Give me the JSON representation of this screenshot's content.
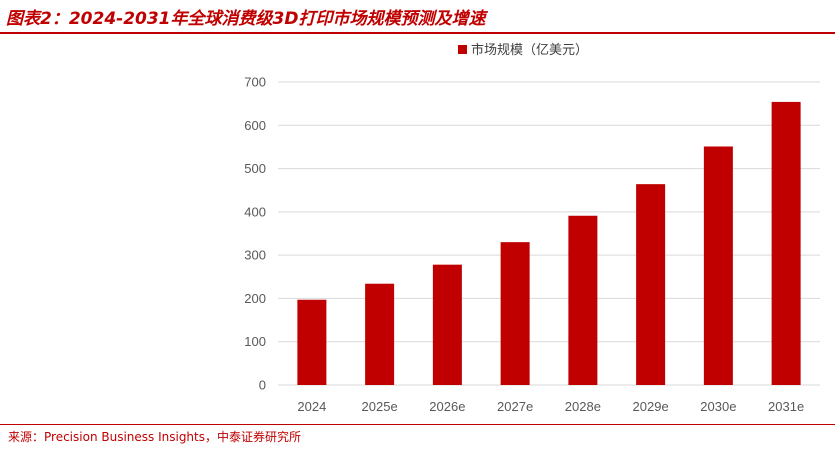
{
  "title": "图表2：2024-2031年全球消费级3D打印市场规模预测及增速",
  "source": "来源：Precision Business Insights，中泰证券研究所",
  "colors": {
    "accent": "#c00000",
    "bar": "#c00000",
    "grid": "#d9d9d9"
  },
  "chart_data": {
    "type": "bar",
    "categories": [
      "2024",
      "2025e",
      "2026e",
      "2027e",
      "2028e",
      "2029e",
      "2030e",
      "2031e"
    ],
    "series": [
      {
        "name": "市场规模（亿美元）",
        "values": [
          197,
          234,
          278,
          330,
          391,
          464,
          551,
          654
        ]
      }
    ],
    "yticks": [
      "0",
      "100",
      "200",
      "300",
      "400",
      "500",
      "600",
      "700"
    ],
    "ylim": [
      0,
      700
    ],
    "grid": true,
    "legend": "top-center"
  }
}
